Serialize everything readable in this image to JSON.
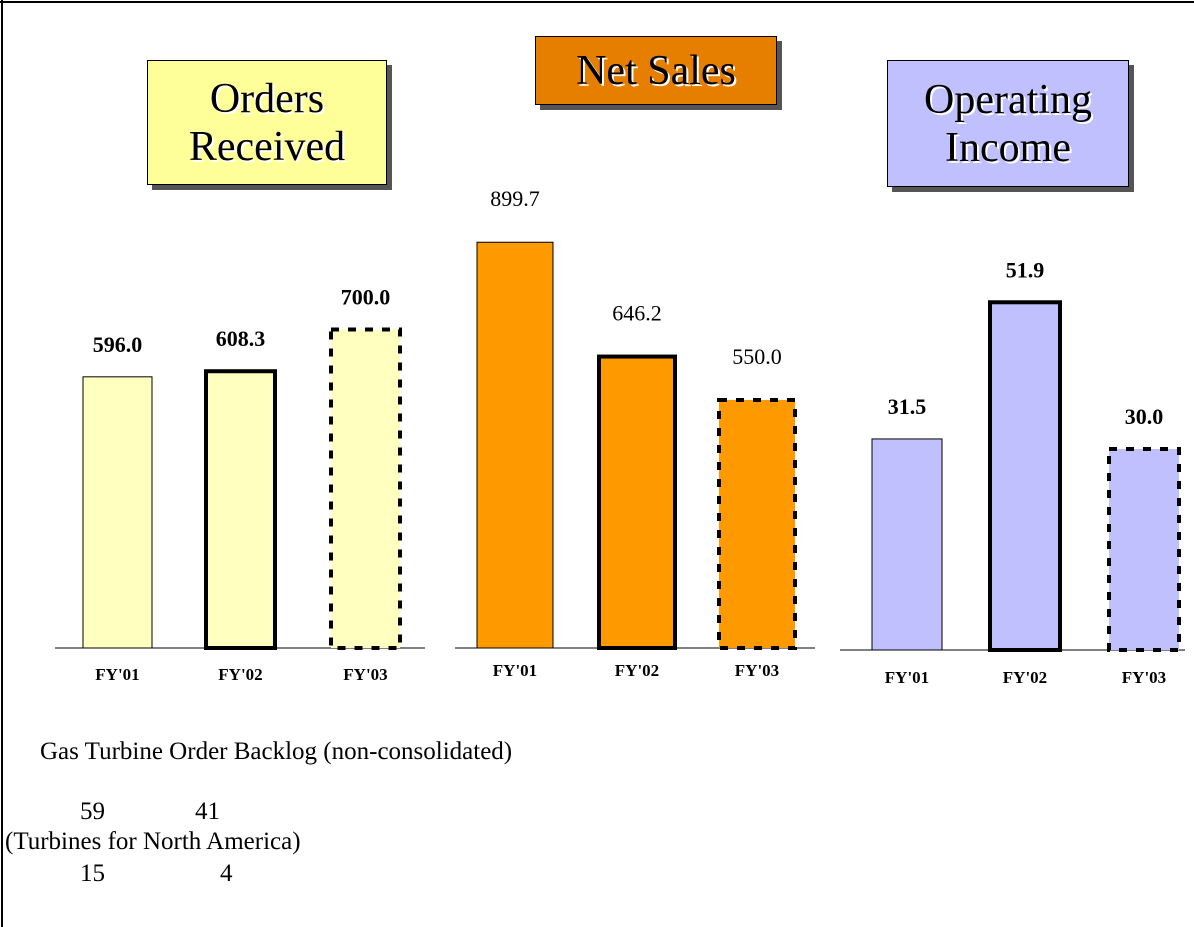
{
  "chart_data": [
    {
      "type": "bar",
      "title": "Orders Received",
      "categories": [
        "FY'01",
        "FY'02",
        "FY'03"
      ],
      "values": [
        596.0,
        608.3,
        700.0
      ],
      "value_labels": [
        "596.0",
        "608.3",
        "700.0"
      ],
      "color": "#ffffc0",
      "title_color": "#ffff99"
    },
    {
      "type": "bar",
      "title": "Net Sales",
      "categories": [
        "FY'01",
        "FY'02",
        "FY'03"
      ],
      "values": [
        899.7,
        646.2,
        550.0
      ],
      "value_labels": [
        "899.7",
        "646.2",
        "550.0"
      ],
      "color": "#ff9900",
      "title_color": "#e67e00"
    },
    {
      "type": "bar",
      "title": "Operating Income",
      "categories": [
        "FY'01",
        "FY'02",
        "FY'03"
      ],
      "values": [
        31.5,
        51.9,
        30.0
      ],
      "value_labels": [
        "31.5",
        "51.9",
        "30.0"
      ],
      "color": "#c0c0ff",
      "title_color": "#c0c0ff"
    }
  ],
  "backlog": {
    "title": "Gas Turbine Order Backlog (non-consolidated)",
    "row1": [
      59,
      41
    ],
    "subtitle": "(Turbines for North America)",
    "row2": [
      15,
      4
    ]
  }
}
